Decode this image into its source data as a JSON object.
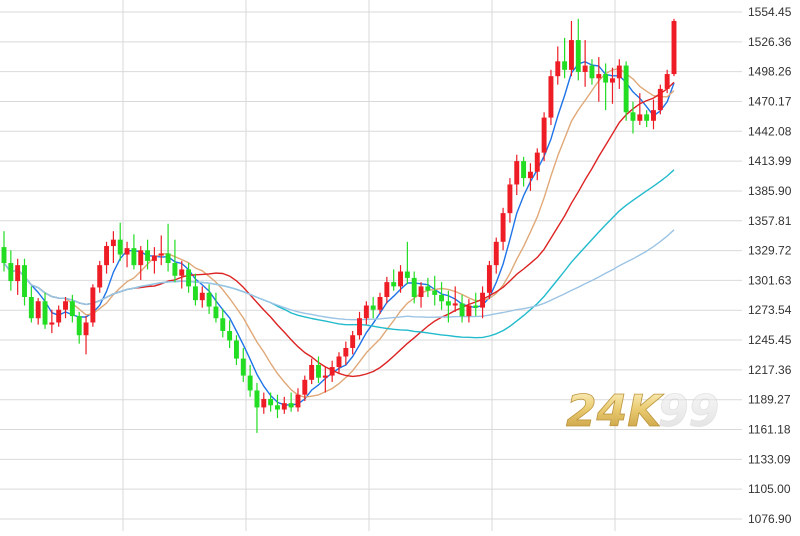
{
  "chart_data": {
    "type": "candlestick",
    "title": "",
    "xlabel": "",
    "ylabel": "",
    "ylim": [
      1076.9,
      1554.45
    ],
    "y_axis_position": "right",
    "y_tick_labels": [
      "1554.45",
      "1526.36",
      "1498.26",
      "1470.17",
      "1442.08",
      "1413.99",
      "1385.90",
      "1357.81",
      "1329.72",
      "1301.63",
      "1273.54",
      "1245.45",
      "1217.36",
      "1189.27",
      "1161.18",
      "1133.09",
      "1105.00",
      "1076.90"
    ],
    "grid": true,
    "colors": {
      "up": "#ee1c25",
      "down": "#22dd22",
      "ma5": "#1e73e8",
      "ma10": "#e0a878",
      "ma20": "#dd2222",
      "ma40": "#22bbcc",
      "ma60": "#9cc4e4",
      "grid": "#d9d9d9"
    },
    "candles": [
      [
        1333,
        1348,
        1310,
        1318
      ],
      [
        1318,
        1330,
        1292,
        1301
      ],
      [
        1301,
        1322,
        1288,
        1316
      ],
      [
        1316,
        1322,
        1278,
        1286
      ],
      [
        1286,
        1296,
        1262,
        1266
      ],
      [
        1266,
        1285,
        1260,
        1282
      ],
      [
        1282,
        1290,
        1256,
        1260
      ],
      [
        1260,
        1274,
        1252,
        1262
      ],
      [
        1262,
        1278,
        1258,
        1274
      ],
      [
        1274,
        1286,
        1266,
        1282
      ],
      [
        1282,
        1288,
        1262,
        1268
      ],
      [
        1268,
        1272,
        1242,
        1250
      ],
      [
        1250,
        1268,
        1232,
        1262
      ],
      [
        1262,
        1298,
        1258,
        1295
      ],
      [
        1295,
        1320,
        1290,
        1316
      ],
      [
        1316,
        1338,
        1308,
        1334
      ],
      [
        1334,
        1348,
        1318,
        1340
      ],
      [
        1340,
        1356,
        1320,
        1326
      ],
      [
        1326,
        1338,
        1314,
        1332
      ],
      [
        1332,
        1345,
        1312,
        1316
      ],
      [
        1316,
        1334,
        1302,
        1330
      ],
      [
        1330,
        1340,
        1312,
        1320
      ],
      [
        1320,
        1333,
        1308,
        1325
      ],
      [
        1325,
        1344,
        1316,
        1327
      ],
      [
        1327,
        1355,
        1310,
        1318
      ],
      [
        1318,
        1340,
        1300,
        1306
      ],
      [
        1306,
        1320,
        1294,
        1312
      ],
      [
        1312,
        1318,
        1290,
        1296
      ],
      [
        1296,
        1308,
        1278,
        1283
      ],
      [
        1283,
        1296,
        1276,
        1290
      ],
      [
        1290,
        1298,
        1270,
        1277
      ],
      [
        1277,
        1290,
        1262,
        1266
      ],
      [
        1266,
        1275,
        1248,
        1254
      ],
      [
        1254,
        1264,
        1238,
        1245
      ],
      [
        1245,
        1250,
        1222,
        1228
      ],
      [
        1228,
        1238,
        1206,
        1212
      ],
      [
        1212,
        1222,
        1192,
        1198
      ],
      [
        1198,
        1205,
        1158,
        1182
      ],
      [
        1182,
        1196,
        1176,
        1190
      ],
      [
        1190,
        1196,
        1178,
        1184
      ],
      [
        1184,
        1194,
        1172,
        1180
      ],
      [
        1180,
        1192,
        1176,
        1186
      ],
      [
        1186,
        1196,
        1178,
        1182
      ],
      [
        1182,
        1200,
        1178,
        1194
      ],
      [
        1194,
        1212,
        1188,
        1208
      ],
      [
        1208,
        1228,
        1204,
        1222
      ],
      [
        1222,
        1230,
        1205,
        1210
      ],
      [
        1210,
        1220,
        1196,
        1212
      ],
      [
        1212,
        1226,
        1206,
        1220
      ],
      [
        1220,
        1234,
        1214,
        1230
      ],
      [
        1230,
        1244,
        1222,
        1238
      ],
      [
        1238,
        1254,
        1232,
        1250
      ],
      [
        1250,
        1272,
        1246,
        1266
      ],
      [
        1266,
        1282,
        1260,
        1278
      ],
      [
        1278,
        1286,
        1266,
        1274
      ],
      [
        1274,
        1290,
        1270,
        1286
      ],
      [
        1286,
        1305,
        1280,
        1300
      ],
      [
        1300,
        1312,
        1292,
        1296
      ],
      [
        1296,
        1316,
        1290,
        1310
      ],
      [
        1310,
        1338,
        1298,
        1304
      ],
      [
        1304,
        1310,
        1280,
        1286
      ],
      [
        1286,
        1300,
        1276,
        1296
      ],
      [
        1296,
        1304,
        1286,
        1292
      ],
      [
        1292,
        1306,
        1278,
        1288
      ],
      [
        1288,
        1300,
        1274,
        1282
      ],
      [
        1282,
        1292,
        1262,
        1278
      ],
      [
        1278,
        1296,
        1272,
        1280
      ],
      [
        1280,
        1288,
        1262,
        1268
      ],
      [
        1268,
        1284,
        1262,
        1278
      ],
      [
        1278,
        1290,
        1268,
        1276
      ],
      [
        1276,
        1296,
        1266,
        1290
      ],
      [
        1290,
        1320,
        1284,
        1316
      ],
      [
        1316,
        1342,
        1308,
        1338
      ],
      [
        1338,
        1370,
        1330,
        1365
      ],
      [
        1365,
        1398,
        1356,
        1392
      ],
      [
        1392,
        1420,
        1382,
        1414
      ],
      [
        1414,
        1418,
        1390,
        1398
      ],
      [
        1398,
        1412,
        1386,
        1404
      ],
      [
        1404,
        1426,
        1396,
        1422
      ],
      [
        1422,
        1460,
        1414,
        1455
      ],
      [
        1455,
        1500,
        1448,
        1494
      ],
      [
        1494,
        1522,
        1486,
        1508
      ],
      [
        1508,
        1530,
        1492,
        1500
      ],
      [
        1500,
        1546,
        1494,
        1528
      ],
      [
        1528,
        1548,
        1490,
        1498
      ],
      [
        1498,
        1528,
        1484,
        1504
      ],
      [
        1504,
        1510,
        1486,
        1492
      ],
      [
        1492,
        1512,
        1470,
        1496
      ],
      [
        1496,
        1506,
        1462,
        1488
      ],
      [
        1488,
        1502,
        1468,
        1492
      ],
      [
        1492,
        1510,
        1482,
        1504
      ],
      [
        1504,
        1508,
        1452,
        1460
      ],
      [
        1460,
        1470,
        1440,
        1452
      ],
      [
        1452,
        1478,
        1448,
        1458
      ],
      [
        1458,
        1462,
        1446,
        1452
      ],
      [
        1452,
        1472,
        1444,
        1462
      ],
      [
        1462,
        1486,
        1458,
        1482
      ],
      [
        1482,
        1500,
        1478,
        1496
      ],
      [
        1496,
        1548,
        1494,
        1546
      ]
    ],
    "moving_averages": [
      {
        "key": "ma5",
        "period": 5
      },
      {
        "key": "ma10",
        "period": 10
      },
      {
        "key": "ma20",
        "period": 20
      },
      {
        "key": "ma40",
        "period": 40
      },
      {
        "key": "ma60",
        "period": 60
      }
    ]
  },
  "watermark": {
    "text": "24K",
    "text2": "99"
  }
}
